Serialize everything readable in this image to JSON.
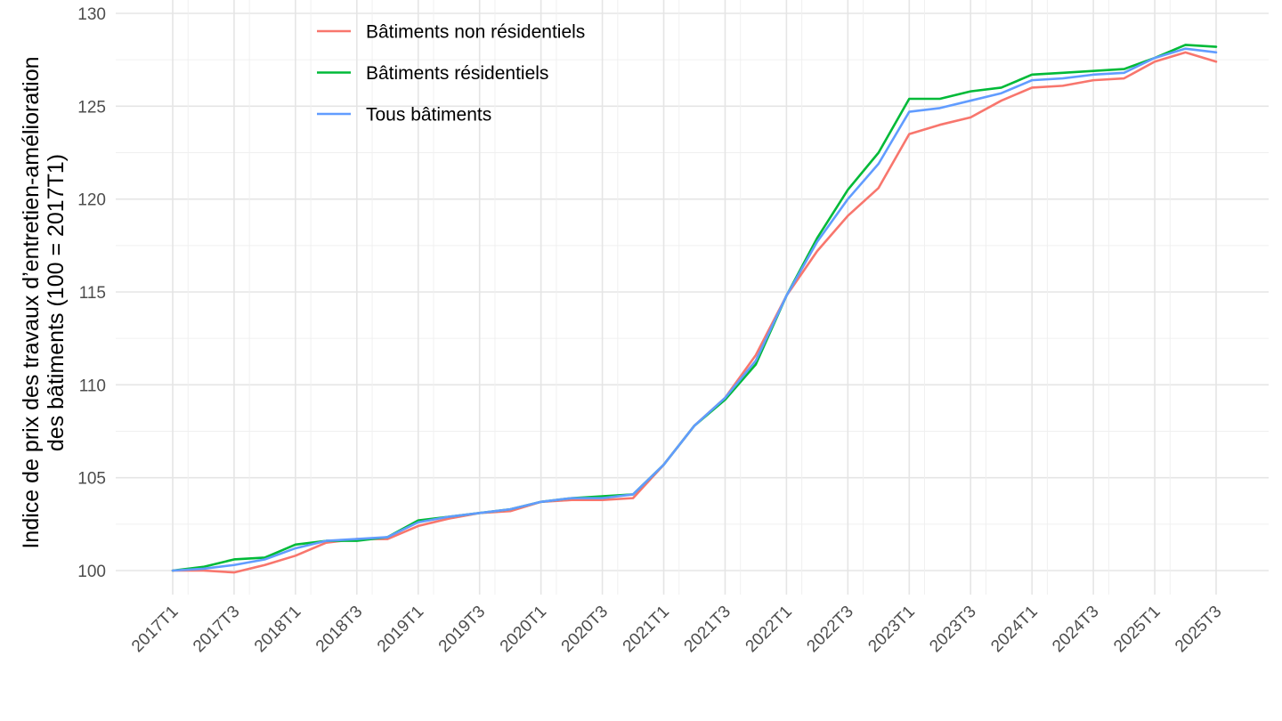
{
  "chart_data": {
    "type": "line",
    "ylabel_line1": "Indice de prix des travaux d’entretien-amélioration",
    "ylabel_line2": "des bâtiments (100 = 2017T1)",
    "xlabel": "",
    "ylim": [
      99,
      130
    ],
    "y_ticks": [
      100,
      105,
      110,
      115,
      120,
      125,
      130
    ],
    "y_tick_labels": [
      "100",
      "105",
      "110",
      "115",
      "120",
      "125",
      "130"
    ],
    "grid": true,
    "legend_position": "top-left (inside)",
    "categories": [
      "2017T1",
      "2017T2",
      "2017T3",
      "2017T4",
      "2018T1",
      "2018T2",
      "2018T3",
      "2018T4",
      "2019T1",
      "2019T2",
      "2019T3",
      "2019T4",
      "2020T1",
      "2020T2",
      "2020T3",
      "2020T4",
      "2021T1",
      "2021T2",
      "2021T3",
      "2021T4",
      "2022T1",
      "2022T2",
      "2022T3",
      "2022T4",
      "2023T1",
      "2023T2",
      "2023T3",
      "2023T4",
      "2024T1",
      "2024T2",
      "2024T3",
      "2024T4",
      "2025T1",
      "2025T2",
      "2025T3"
    ],
    "x_tick_labels": [
      "2017T1",
      "2017T3",
      "2018T1",
      "2018T3",
      "2019T1",
      "2019T3",
      "2020T1",
      "2020T3",
      "2021T1",
      "2021T3",
      "2022T1",
      "2022T3",
      "2023T1",
      "2023T3",
      "2024T1",
      "2024T3",
      "2025T1",
      "2025T3"
    ],
    "series": [
      {
        "name": "Bâtiments non résidentiels",
        "color": "#F8766D",
        "values": [
          100.0,
          100.0,
          99.9,
          100.3,
          100.8,
          101.5,
          101.7,
          101.7,
          102.4,
          102.8,
          103.1,
          103.2,
          103.7,
          103.8,
          103.8,
          103.9,
          105.7,
          107.8,
          109.3,
          111.6,
          114.8,
          117.2,
          119.1,
          120.6,
          123.5,
          124.0,
          124.4,
          125.3,
          126.0,
          126.1,
          126.4,
          126.5,
          127.4,
          127.9,
          127.4
        ]
      },
      {
        "name": "Bâtiments résidentiels",
        "color": "#00BA38",
        "values": [
          100.0,
          100.2,
          100.6,
          100.7,
          101.4,
          101.6,
          101.6,
          101.8,
          102.7,
          102.9,
          103.1,
          103.3,
          103.7,
          103.9,
          104.0,
          104.1,
          105.7,
          107.8,
          109.2,
          111.1,
          114.8,
          117.9,
          120.5,
          122.5,
          125.4,
          125.4,
          125.8,
          126.0,
          126.7,
          126.8,
          126.9,
          127.0,
          127.6,
          128.3,
          128.2
        ]
      },
      {
        "name": "Tous bâtiments",
        "color": "#619CFF",
        "values": [
          100.0,
          100.1,
          100.3,
          100.6,
          101.2,
          101.6,
          101.7,
          101.8,
          102.6,
          102.9,
          103.1,
          103.3,
          103.7,
          103.9,
          103.9,
          104.1,
          105.7,
          107.8,
          109.3,
          111.3,
          114.8,
          117.7,
          120.0,
          121.9,
          124.7,
          124.9,
          125.3,
          125.7,
          126.4,
          126.5,
          126.7,
          126.8,
          127.6,
          128.1,
          127.9
        ]
      }
    ]
  }
}
